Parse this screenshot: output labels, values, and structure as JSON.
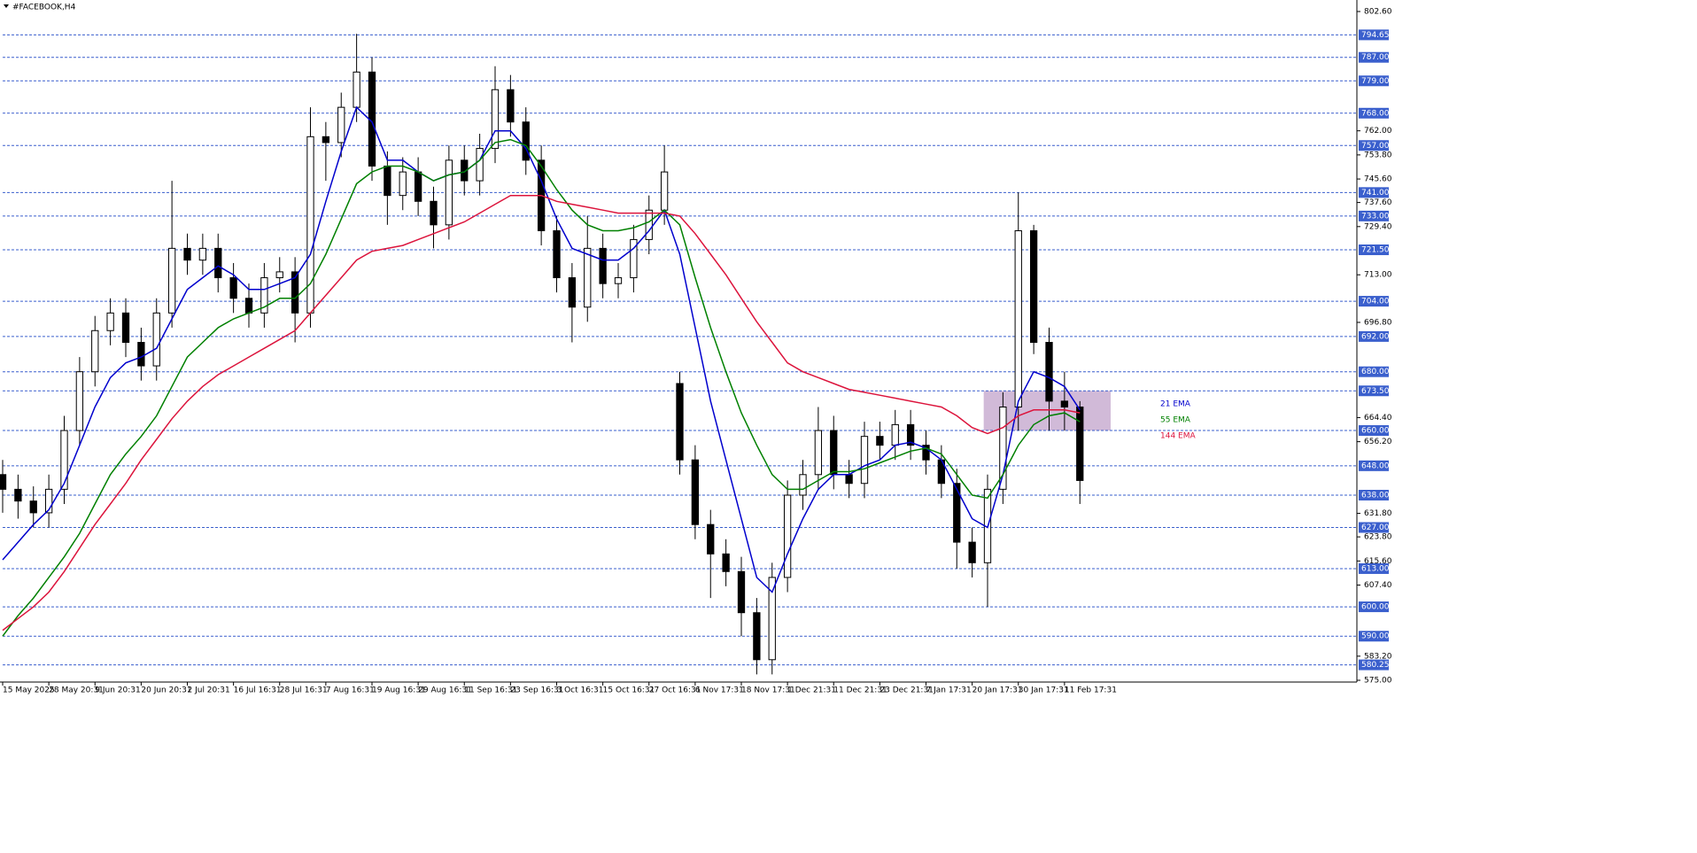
{
  "chart_data": {
    "type": "candlestick",
    "title": "#FACEBOOK,H4",
    "x": [
      0,
      4,
      8,
      12,
      16,
      20,
      24,
      28,
      32,
      36,
      40,
      44,
      48,
      52,
      56,
      60,
      64,
      68,
      72,
      76,
      80,
      84,
      88,
      92,
      96,
      100,
      104,
      108,
      112,
      116,
      120,
      124,
      128,
      132,
      136,
      140,
      144,
      148,
      152,
      156,
      160,
      164,
      168,
      172,
      176,
      180,
      184,
      188,
      192,
      196,
      200,
      204,
      208,
      212,
      216,
      220,
      224,
      228,
      232,
      236,
      240,
      244,
      248,
      252,
      256,
      260,
      264,
      268,
      272,
      276,
      280
    ],
    "open": [
      645,
      640,
      636,
      632,
      640,
      660,
      680,
      694,
      700,
      690,
      682,
      700,
      722,
      718,
      722,
      712,
      705,
      700,
      712,
      714,
      700,
      760,
      758,
      770,
      782,
      750,
      740,
      748,
      738,
      730,
      752,
      745,
      756,
      776,
      765,
      752,
      728,
      712,
      702,
      722,
      710,
      712,
      725,
      735,
      676,
      650,
      628,
      618,
      612,
      598,
      582,
      610,
      638,
      645,
      660,
      645,
      642,
      658,
      655,
      662,
      655,
      650,
      642,
      622,
      615,
      640,
      668,
      728,
      690,
      670,
      668
    ],
    "high": [
      650,
      645,
      641,
      645,
      665,
      685,
      699,
      705,
      705,
      695,
      705,
      745,
      727,
      727,
      727,
      717,
      710,
      717,
      719,
      719,
      770,
      765,
      775,
      795,
      787,
      755,
      753,
      753,
      743,
      757,
      757,
      761,
      784,
      781,
      770,
      757,
      733,
      717,
      733,
      727,
      717,
      730,
      740,
      757,
      680,
      655,
      633,
      623,
      617,
      603,
      615,
      643,
      650,
      668,
      665,
      650,
      663,
      663,
      667,
      667,
      660,
      655,
      647,
      627,
      645,
      673,
      741,
      730,
      695,
      680,
      670
    ],
    "low": [
      632,
      630,
      627,
      627,
      635,
      655,
      675,
      689,
      685,
      677,
      677,
      695,
      713,
      713,
      707,
      700,
      695,
      695,
      707,
      690,
      695,
      745,
      753,
      765,
      745,
      730,
      735,
      733,
      722,
      725,
      740,
      740,
      751,
      760,
      747,
      723,
      707,
      690,
      697,
      705,
      705,
      707,
      720,
      730,
      645,
      623,
      603,
      607,
      590,
      577,
      577,
      605,
      633,
      640,
      640,
      637,
      637,
      650,
      650,
      650,
      645,
      637,
      613,
      610,
      600,
      635,
      660,
      686,
      660,
      660,
      635
    ],
    "close": [
      640,
      636,
      632,
      640,
      660,
      680,
      694,
      700,
      690,
      682,
      700,
      722,
      718,
      722,
      712,
      705,
      700,
      712,
      714,
      700,
      760,
      758,
      770,
      782,
      750,
      740,
      748,
      738,
      730,
      752,
      745,
      756,
      776,
      765,
      752,
      728,
      712,
      702,
      722,
      710,
      712,
      725,
      735,
      748,
      650,
      628,
      618,
      612,
      598,
      582,
      610,
      638,
      645,
      660,
      645,
      642,
      658,
      655,
      662,
      655,
      650,
      642,
      622,
      615,
      640,
      668,
      728,
      690,
      670,
      668,
      643
    ],
    "up_color": "#ffffff",
    "down_color": "#000000",
    "wick_color": "#000000",
    "series": [
      {
        "name": "21 EMA",
        "color": "#0000cd",
        "values": [
          616,
          622,
          628,
          633,
          642,
          655,
          668,
          678,
          683,
          685,
          688,
          698,
          708,
          712,
          716,
          713,
          708,
          708,
          710,
          712,
          720,
          738,
          755,
          770,
          765,
          752,
          752,
          748,
          745,
          747,
          748,
          752,
          762,
          762,
          756,
          745,
          732,
          722,
          720,
          718,
          718,
          722,
          728,
          735,
          720,
          695,
          670,
          650,
          630,
          610,
          605,
          618,
          630,
          640,
          645,
          645,
          648,
          650,
          655,
          656,
          654,
          650,
          640,
          630,
          627,
          645,
          670,
          680,
          678,
          675,
          667
        ]
      },
      {
        "name": "55 EMA",
        "color": "#008000",
        "values": [
          590,
          597,
          603,
          610,
          617,
          625,
          635,
          645,
          652,
          658,
          665,
          675,
          685,
          690,
          695,
          698,
          700,
          702,
          705,
          705,
          710,
          720,
          732,
          744,
          748,
          750,
          750,
          748,
          745,
          747,
          748,
          752,
          758,
          759,
          757,
          750,
          742,
          735,
          730,
          728,
          728,
          729,
          731,
          735,
          730,
          712,
          695,
          680,
          666,
          655,
          645,
          640,
          640,
          643,
          646,
          646,
          647,
          649,
          651,
          653,
          654,
          652,
          645,
          638,
          637,
          645,
          655,
          662,
          665,
          666,
          663
        ]
      },
      {
        "name": "144 EMA",
        "color": "#dc143c",
        "values": [
          592,
          596,
          600,
          605,
          612,
          620,
          628,
          635,
          642,
          650,
          657,
          664,
          670,
          675,
          679,
          682,
          685,
          688,
          691,
          694,
          700,
          706,
          712,
          718,
          721,
          722,
          723,
          725,
          727,
          729,
          731,
          734,
          737,
          740,
          740,
          740,
          738,
          737,
          736,
          735,
          734,
          734,
          734,
          734,
          733,
          727,
          720,
          713,
          705,
          697,
          690,
          683,
          680,
          678,
          676,
          674,
          673,
          672,
          671,
          670,
          669,
          668,
          665,
          661,
          659,
          661,
          665,
          667,
          667,
          667,
          666
        ]
      }
    ],
    "ylim": [
      575,
      802.6
    ],
    "yticks": [
      {
        "value": 802.6,
        "label": "802.60"
      },
      {
        "value": 762,
        "label": "762.00"
      },
      {
        "value": 753.8,
        "label": "753.80"
      },
      {
        "value": 745.6,
        "label": "745.60"
      },
      {
        "value": 737.6,
        "label": "737.60"
      },
      {
        "value": 729.4,
        "label": "729.40"
      },
      {
        "value": 713,
        "label": "713.00"
      },
      {
        "value": 696.8,
        "label": "696.80"
      },
      {
        "value": 664.4,
        "label": "664.40"
      },
      {
        "value": 656.2,
        "label": "656.20"
      },
      {
        "value": 631.8,
        "label": "631.80"
      },
      {
        "value": 623.8,
        "label": "623.80"
      },
      {
        "value": 615.6,
        "label": "615.60"
      },
      {
        "value": 607.4,
        "label": "607.40"
      },
      {
        "value": 583.2,
        "label": "583.20"
      },
      {
        "value": 575,
        "label": "575.00"
      }
    ],
    "levels": [
      {
        "value": 794.65,
        "label": "794.65"
      },
      {
        "value": 787,
        "label": "787.00"
      },
      {
        "value": 779,
        "label": "779.00"
      },
      {
        "value": 768,
        "label": "768.00"
      },
      {
        "value": 757,
        "label": "757.00"
      },
      {
        "value": 741,
        "label": "741.00"
      },
      {
        "value": 733,
        "label": "733.00"
      },
      {
        "value": 721.5,
        "label": "721.50"
      },
      {
        "value": 704,
        "label": "704.00"
      },
      {
        "value": 692,
        "label": "692.00"
      },
      {
        "value": 680,
        "label": "680.00"
      },
      {
        "value": 673.5,
        "label": "673.50"
      },
      {
        "value": 660,
        "label": "660.00"
      },
      {
        "value": 648,
        "label": "648.00"
      },
      {
        "value": 638,
        "label": "638.00"
      },
      {
        "value": 627,
        "label": "627.00"
      },
      {
        "value": 613,
        "label": "613.00"
      },
      {
        "value": 600,
        "label": "600.00"
      },
      {
        "value": 590,
        "label": "590.00"
      },
      {
        "value": 580.25,
        "label": "580.25"
      }
    ],
    "level_color": "#3a5fcd",
    "xlim": [
      0,
      352
    ],
    "xticks": [
      {
        "value": 0,
        "label": "15 May 2025"
      },
      {
        "value": 12,
        "label": "28 May 20:31"
      },
      {
        "value": 24,
        "label": "9 Jun 20:31"
      },
      {
        "value": 36,
        "label": "20 Jun 20:31"
      },
      {
        "value": 48,
        "label": "2 Jul 20:31"
      },
      {
        "value": 60,
        "label": "16 Jul 16:31"
      },
      {
        "value": 72,
        "label": "28 Jul 16:31"
      },
      {
        "value": 84,
        "label": "7 Aug 16:31"
      },
      {
        "value": 96,
        "label": "19 Aug 16:31"
      },
      {
        "value": 108,
        "label": "29 Aug 16:31"
      },
      {
        "value": 120,
        "label": "11 Sep 16:31"
      },
      {
        "value": 132,
        "label": "23 Sep 16:31"
      },
      {
        "value": 144,
        "label": "3 Oct 16:31"
      },
      {
        "value": 156,
        "label": "15 Oct 16:31"
      },
      {
        "value": 168,
        "label": "27 Oct 16:31"
      },
      {
        "value": 180,
        "label": "6 Nov 17:31"
      },
      {
        "value": 192,
        "label": "18 Nov 17:31"
      },
      {
        "value": 204,
        "label": "1 Dec 21:31"
      },
      {
        "value": 216,
        "label": "11 Dec 21:31"
      },
      {
        "value": 228,
        "label": "23 Dec 21:31"
      },
      {
        "value": 240,
        "label": "7 Jan 17:31"
      },
      {
        "value": 252,
        "label": "20 Jan 17:31"
      },
      {
        "value": 264,
        "label": "30 Jan 17:31"
      },
      {
        "value": 276,
        "label": "11 Feb 17:31"
      }
    ],
    "zone": {
      "x": [
        255,
        288
      ],
      "y": [
        660,
        673.5
      ],
      "color": "#c9aed1"
    },
    "grid": false
  }
}
